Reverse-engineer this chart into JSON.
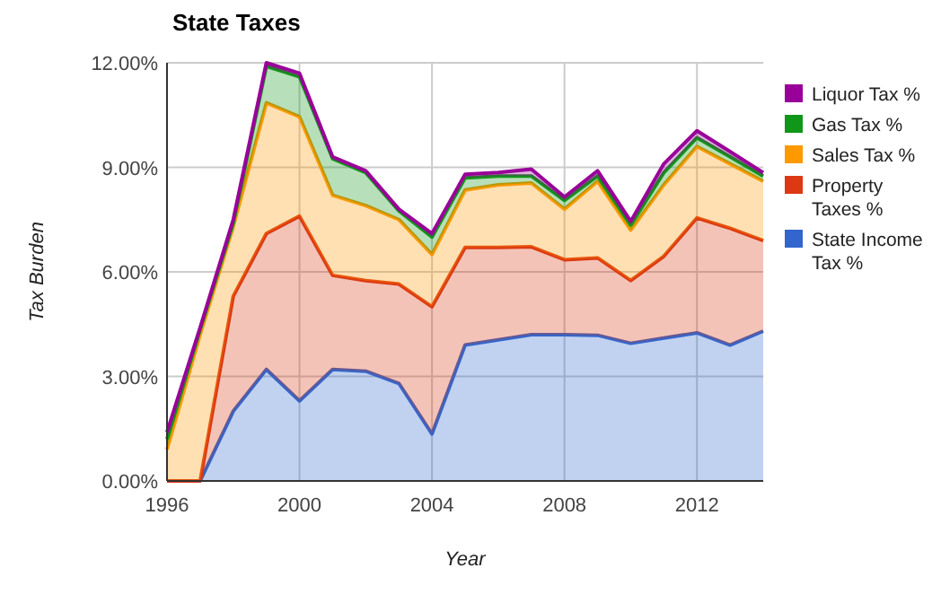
{
  "chart_data": {
    "type": "area",
    "title": "State Taxes",
    "xlabel": "Year",
    "ylabel": "Tax Burden",
    "stacked": true,
    "grid": true,
    "legend": "right",
    "x": [
      1996,
      1997,
      1998,
      1999,
      2000,
      2001,
      2002,
      2003,
      2004,
      2005,
      2006,
      2007,
      2008,
      2009,
      2010,
      2011,
      2012,
      2013,
      2014
    ],
    "xlim": [
      1996,
      2014
    ],
    "xticks": [
      1996,
      2000,
      2004,
      2008,
      2012
    ],
    "ylim": [
      0,
      12
    ],
    "yticks": [
      {
        "value": 0,
        "label": "0.00%"
      },
      {
        "value": 3,
        "label": "3.00%"
      },
      {
        "value": 6,
        "label": "6.00%"
      },
      {
        "value": 9,
        "label": "9.00%"
      },
      {
        "value": 12,
        "label": "12.00%"
      }
    ],
    "series": [
      {
        "name": "State Income Tax %",
        "color": "#3366cc",
        "values": [
          0,
          0,
          2.0,
          3.2,
          2.3,
          3.2,
          3.15,
          2.8,
          1.35,
          3.9,
          4.05,
          4.2,
          4.2,
          4.18,
          3.95,
          4.1,
          4.25,
          3.9,
          4.3
        ]
      },
      {
        "name": "Property Taxes %",
        "color": "#dc3912",
        "values": [
          0,
          0,
          3.3,
          3.9,
          5.3,
          2.7,
          2.6,
          2.85,
          3.65,
          2.8,
          2.65,
          2.52,
          2.15,
          2.22,
          1.8,
          2.35,
          3.3,
          3.35,
          2.6
        ]
      },
      {
        "name": "Sales Tax %",
        "color": "#ff9900",
        "values": [
          0.9,
          4.2,
          2.0,
          3.75,
          2.85,
          2.3,
          2.15,
          1.85,
          1.5,
          1.65,
          1.8,
          1.83,
          1.45,
          2.2,
          1.45,
          2.05,
          2.05,
          1.85,
          1.7
        ]
      },
      {
        "name": "Gas Tax %",
        "color": "#109618",
        "values": [
          0.3,
          0.15,
          0.1,
          1.05,
          1.15,
          1.05,
          0.95,
          0.25,
          0.5,
          0.35,
          0.25,
          0.2,
          0.25,
          0.15,
          0.15,
          0.35,
          0.25,
          0.2,
          0.15
        ]
      },
      {
        "name": "Liquor Tax %",
        "color": "#990099",
        "values": [
          0.2,
          0.05,
          0.1,
          0.1,
          0.1,
          0.05,
          0.05,
          0.05,
          0.1,
          0.1,
          0.1,
          0.2,
          0.1,
          0.15,
          0.1,
          0.25,
          0.2,
          0.15,
          0.1
        ]
      }
    ]
  }
}
